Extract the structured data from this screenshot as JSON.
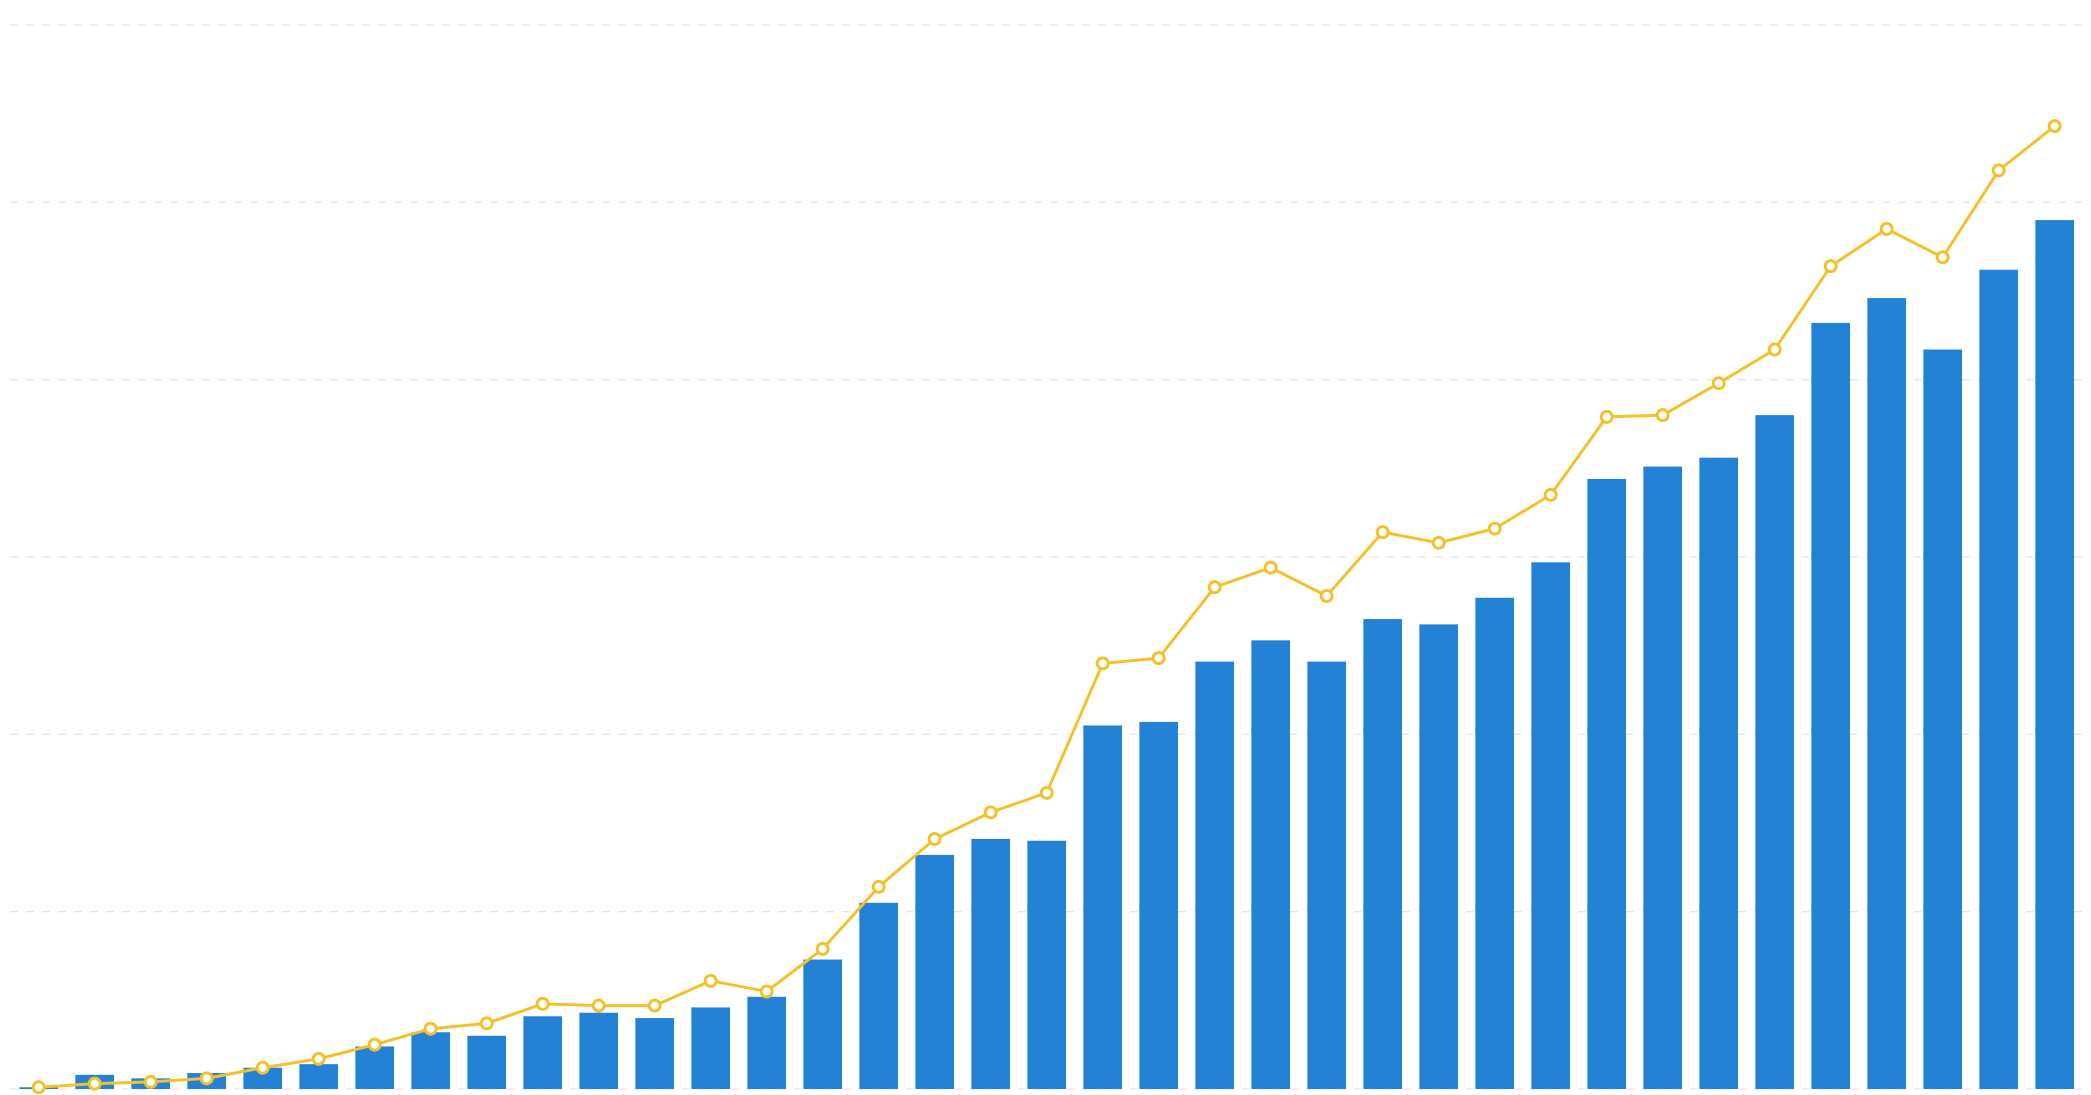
{
  "chart_data": {
    "type": "bar_line",
    "categories": [
      null,
      null,
      null,
      null,
      null,
      null,
      null,
      null,
      null,
      null,
      null,
      null,
      null,
      null,
      null,
      null,
      null,
      null,
      null,
      null,
      null,
      null,
      null,
      null,
      null,
      null,
      null,
      null,
      null,
      null,
      null,
      null,
      null,
      null,
      null,
      null,
      null
    ],
    "series": [
      {
        "type": "bar",
        "color": "#2381d6",
        "values": [
          0.01,
          0.08,
          0.06,
          0.09,
          0.12,
          0.14,
          0.24,
          0.32,
          0.3,
          0.41,
          0.43,
          0.4,
          0.46,
          0.52,
          0.73,
          1.05,
          1.32,
          1.41,
          1.4,
          2.05,
          2.07,
          2.41,
          2.53,
          2.41,
          2.65,
          2.62,
          2.77,
          2.97,
          3.44,
          3.51,
          3.56,
          3.8,
          4.32,
          4.46,
          4.17,
          4.62,
          4.9
        ]
      },
      {
        "type": "line",
        "color": "#f2c12e",
        "values": [
          0.01,
          0.03,
          0.04,
          0.06,
          0.12,
          0.17,
          0.25,
          0.34,
          0.37,
          0.48,
          0.47,
          0.47,
          0.61,
          0.55,
          0.79,
          1.14,
          1.41,
          1.56,
          1.67,
          2.4,
          2.43,
          2.83,
          2.94,
          2.78,
          3.14,
          3.08,
          3.16,
          3.35,
          3.79,
          3.8,
          3.98,
          4.17,
          4.64,
          4.85,
          4.69,
          5.18,
          5.43
        ]
      }
    ],
    "ylim": [
      0,
      6
    ],
    "yticks": [
      0,
      1,
      2,
      3,
      4,
      5,
      6
    ],
    "grid": true
  }
}
